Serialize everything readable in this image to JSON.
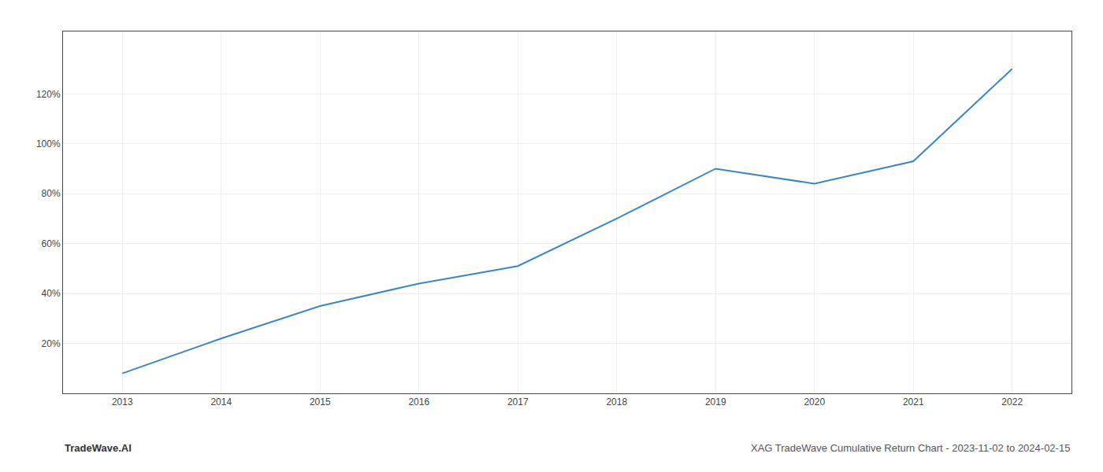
{
  "chart_data": {
    "type": "line",
    "x": [
      2013,
      2014,
      2015,
      2016,
      2017,
      2018,
      2019,
      2020,
      2021,
      2022
    ],
    "values": [
      0.08,
      0.22,
      0.35,
      0.44,
      0.51,
      0.7,
      0.9,
      0.84,
      0.93,
      1.3
    ],
    "color": "#3a86c8",
    "xlim": [
      2012.4,
      2022.6
    ],
    "xticks": [
      2013,
      2014,
      2015,
      2016,
      2017,
      2018,
      2019,
      2020,
      2021,
      2022
    ],
    "ylim": [
      0.0,
      1.45
    ],
    "yticks": [
      {
        "value": 0.2,
        "label": "20%"
      },
      {
        "value": 0.4,
        "label": "40%"
      },
      {
        "value": 0.6,
        "label": "60%"
      },
      {
        "value": 0.8,
        "label": "80%"
      },
      {
        "value": 1.0,
        "label": "100%"
      },
      {
        "value": 1.2,
        "label": "120%"
      }
    ],
    "grid": true,
    "annotations": [
      "TradeWave.AI",
      "XAG TradeWave Cumulative Return Chart - 2023-11-02 to 2024-02-15"
    ]
  }
}
